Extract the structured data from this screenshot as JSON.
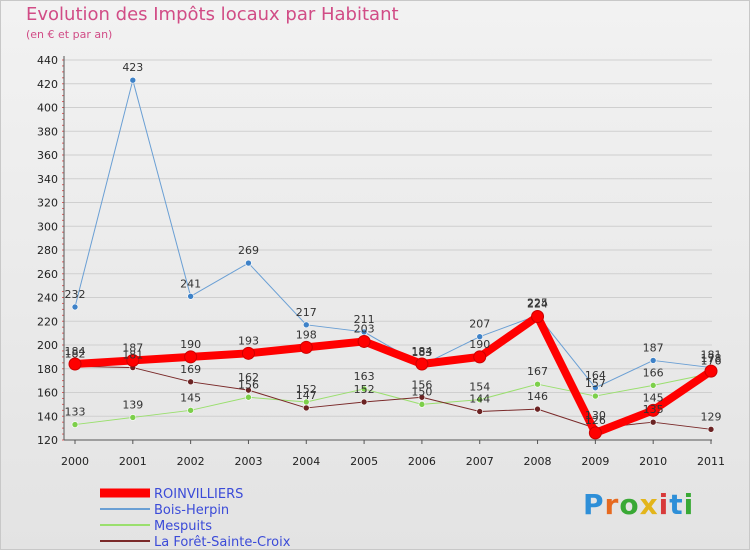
{
  "header": {
    "title": "Evolution des Impôts locaux par Habitant",
    "subtitle": "(en € et par an)"
  },
  "brand": {
    "text": "Proxiti"
  },
  "colors": {
    "title": "#d14c86",
    "axis_text": "#222222",
    "legend_text": "#3b4bd8"
  },
  "chart_data": {
    "type": "line",
    "title": "Evolution des Impôts locaux par Habitant",
    "subtitle": "(en € et par an)",
    "xlabel": "",
    "ylabel": "",
    "ylim": [
      120,
      440
    ],
    "yticks": [
      120,
      140,
      160,
      180,
      200,
      220,
      240,
      260,
      280,
      300,
      320,
      340,
      360,
      380,
      400,
      420,
      440
    ],
    "x": [
      2000,
      2001,
      2002,
      2003,
      2004,
      2005,
      2006,
      2007,
      2008,
      2009,
      2010,
      2011
    ],
    "grid": "horizontal",
    "legend_position": "bottom-left",
    "series": [
      {
        "name": "ROINVILLIERS",
        "color": "#ff0000",
        "width": 8,
        "point": "#ff0000",
        "values": [
          184,
          187,
          190,
          193,
          198,
          203,
          184,
          190,
          224,
          126,
          145,
          178
        ]
      },
      {
        "name": "Bois-Herpin",
        "color": "#6a9fd4",
        "width": 1,
        "point": "#3e82c8",
        "values": [
          232,
          423,
          241,
          269,
          217,
          211,
          183,
          207,
          225,
          164,
          187,
          181
        ]
      },
      {
        "name": "Mespuits",
        "color": "#9adf6e",
        "width": 1,
        "point": "#7ccf4a",
        "values": [
          133,
          139,
          145,
          156,
          152,
          163,
          150,
          154,
          167,
          157,
          166,
          176
        ]
      },
      {
        "name": "La Forêt-Sainte-Croix",
        "color": "#7a2a2a",
        "width": 1,
        "point": "#6b2323",
        "values": [
          182,
          181,
          169,
          162,
          147,
          152,
          156,
          144,
          146,
          130,
          135,
          129
        ]
      }
    ]
  }
}
